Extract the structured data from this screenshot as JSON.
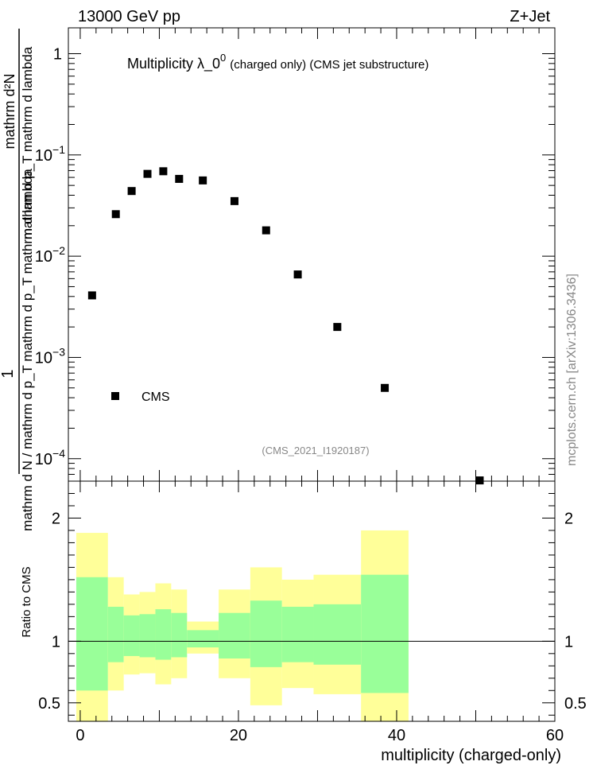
{
  "header": {
    "left": "13000 GeV pp",
    "right": "Z+Jet"
  },
  "side_label": "mcplots.cern.ch [arXiv:1306.3436]",
  "chart_data": [
    {
      "type": "scatter",
      "title_main": "Multiplicity  λ_0",
      "title_sup": "0",
      "title_rest": "(charged only) (CMS jet substructure)",
      "watermark": "(CMS_2021_I1920187)",
      "ylabel_numerator": "1",
      "ylabel_denominator": "mathrm d N / mathrm d p_T mathrm d p_T mathrm d lambda",
      "ylabel_top": "mathrm d²N",
      "ylabel_top_sub": "mathrm d p_T mathrm d lambda",
      "y_scale": "log",
      "xlim": [
        -1.5,
        60
      ],
      "ylim": [
        6e-05,
        1.8
      ],
      "y_ticks": [
        {
          "value": 1,
          "label": "1"
        },
        {
          "value": 0.1,
          "label": "10",
          "exp": "−1"
        },
        {
          "value": 0.01,
          "label": "10",
          "exp": "−2"
        },
        {
          "value": 0.001,
          "label": "10",
          "exp": "−3"
        },
        {
          "value": 0.0001,
          "label": "10",
          "exp": "−4"
        }
      ],
      "legend": {
        "position": "bottom-left",
        "entries": [
          "CMS"
        ]
      },
      "series": [
        {
          "name": "CMS",
          "marker": "square",
          "points": [
            {
              "x": 1.5,
              "y": 0.0041
            },
            {
              "x": 4.5,
              "y": 0.026
            },
            {
              "x": 6.5,
              "y": 0.044
            },
            {
              "x": 8.5,
              "y": 0.065
            },
            {
              "x": 10.5,
              "y": 0.069
            },
            {
              "x": 12.5,
              "y": 0.058
            },
            {
              "x": 15.5,
              "y": 0.056
            },
            {
              "x": 19.5,
              "y": 0.035
            },
            {
              "x": 23.5,
              "y": 0.018
            },
            {
              "x": 27.5,
              "y": 0.0066
            },
            {
              "x": 32.5,
              "y": 0.002
            },
            {
              "x": 38.5,
              "y": 0.0005
            },
            {
              "x": 50.5,
              "y": 6.1e-05
            }
          ]
        }
      ]
    },
    {
      "type": "area",
      "ylabel": "Ratio to CMS",
      "xlabel": "multiplicity (charged-only)",
      "xlim": [
        -1.5,
        60
      ],
      "ylim": [
        0.35,
        2.3
      ],
      "x_ticks": [
        0,
        20,
        40,
        60
      ],
      "y_ticks": [
        0.5,
        1,
        2
      ],
      "reference_line": 1,
      "bands": [
        {
          "x0": -0.5,
          "x1": 3.5,
          "outer": [
            0.35,
            1.88
          ],
          "inner": [
            0.6,
            1.52
          ]
        },
        {
          "x0": 3.5,
          "x1": 5.5,
          "outer": [
            0.6,
            1.52
          ],
          "inner": [
            0.83,
            1.28
          ]
        },
        {
          "x0": 5.5,
          "x1": 7.5,
          "outer": [
            0.73,
            1.38
          ],
          "inner": [
            0.88,
            1.21
          ]
        },
        {
          "x0": 7.5,
          "x1": 9.5,
          "outer": [
            0.74,
            1.4
          ],
          "inner": [
            0.87,
            1.22
          ]
        },
        {
          "x0": 9.5,
          "x1": 11.5,
          "outer": [
            0.65,
            1.47
          ],
          "inner": [
            0.85,
            1.26
          ]
        },
        {
          "x0": 11.5,
          "x1": 13.5,
          "outer": [
            0.7,
            1.42
          ],
          "inner": [
            0.87,
            1.23
          ]
        },
        {
          "x0": 13.5,
          "x1": 17.5,
          "outer": [
            0.9,
            1.16
          ],
          "inner": [
            0.95,
            1.09
          ]
        },
        {
          "x0": 17.5,
          "x1": 21.5,
          "outer": [
            0.7,
            1.42
          ],
          "inner": [
            0.86,
            1.23
          ]
        },
        {
          "x0": 21.5,
          "x1": 25.5,
          "outer": [
            0.48,
            1.6
          ],
          "inner": [
            0.79,
            1.33
          ]
        },
        {
          "x0": 25.5,
          "x1": 29.5,
          "outer": [
            0.62,
            1.5
          ],
          "inner": [
            0.83,
            1.28
          ]
        },
        {
          "x0": 29.5,
          "x1": 35.5,
          "outer": [
            0.57,
            1.54
          ],
          "inner": [
            0.81,
            1.3
          ]
        },
        {
          "x0": 35.5,
          "x1": 41.5,
          "outer": [
            0.35,
            1.9
          ],
          "inner": [
            0.58,
            1.54
          ]
        }
      ]
    }
  ],
  "colors": {
    "outer_band": "#ffff99",
    "inner_band": "#99ff99",
    "marker": "#000000",
    "watermark": "#888888"
  }
}
